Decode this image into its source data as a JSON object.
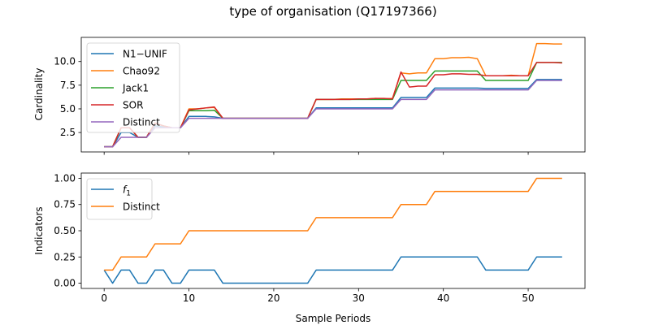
{
  "chart_data": [
    {
      "type": "line",
      "title": "type of organisation (Q17197366)",
      "xlabel": "",
      "ylabel": "Cardinality",
      "xlim": [
        -2.7,
        56.7
      ],
      "ylim": [
        0.45,
        12.55
      ],
      "xticks": [
        0,
        10,
        20,
        30,
        40,
        50
      ],
      "xtick_labels_visible": false,
      "yticks": [
        2.5,
        5.0,
        7.5,
        10.0
      ],
      "ytick_labels": [
        "2.5",
        "5.0",
        "7.5",
        "10.0"
      ],
      "legend_position": "upper-left",
      "grid": false,
      "x": [
        0,
        1,
        2,
        3,
        4,
        5,
        6,
        7,
        8,
        9,
        10,
        11,
        12,
        13,
        14,
        15,
        16,
        17,
        18,
        19,
        20,
        21,
        22,
        23,
        24,
        25,
        26,
        27,
        28,
        29,
        30,
        31,
        32,
        33,
        34,
        35,
        36,
        37,
        38,
        39,
        40,
        41,
        42,
        43,
        44,
        45,
        46,
        47,
        48,
        49,
        50,
        51,
        52,
        53,
        54
      ],
      "series": [
        {
          "name": "N1−UNIF",
          "color": "#1f77b4",
          "values": [
            1,
            1,
            2.5,
            2.5,
            2,
            2,
            3.2,
            3.1,
            3,
            3,
            4.2,
            4.2,
            4.2,
            4.15,
            4,
            4,
            4,
            4,
            4,
            4,
            4,
            4,
            4,
            4,
            4,
            5.1,
            5.1,
            5.1,
            5.1,
            5.1,
            5.1,
            5.1,
            5.1,
            5.1,
            5.1,
            6.2,
            6.2,
            6.2,
            6.2,
            7.2,
            7.2,
            7.2,
            7.2,
            7.2,
            7.2,
            7.15,
            7.15,
            7.15,
            7.15,
            7.15,
            7.15,
            8.1,
            8.1,
            8.1,
            8.1
          ]
        },
        {
          "name": "Chao92",
          "color": "#ff7f0e",
          "values": [
            1,
            1,
            3,
            3,
            2,
            2,
            3.5,
            3.2,
            3,
            3,
            5,
            5,
            5.1,
            5.15,
            4,
            4,
            4,
            4,
            4,
            4,
            4,
            4,
            4,
            4,
            4,
            6,
            6,
            6,
            6.05,
            6.05,
            6.05,
            6.05,
            6.1,
            6.05,
            6.1,
            8.8,
            8.7,
            8.8,
            8.8,
            10.3,
            10.3,
            10.4,
            10.4,
            10.45,
            10.3,
            8.5,
            8.5,
            8.5,
            8.55,
            8.5,
            8.5,
            11.9,
            11.9,
            11.85,
            11.85
          ]
        },
        {
          "name": "Jack1",
          "color": "#2ca02c",
          "values": [
            1,
            1,
            3,
            3,
            2,
            2,
            3.5,
            3.2,
            3,
            3,
            4.8,
            4.8,
            4.8,
            4.85,
            4,
            4,
            4,
            4,
            4,
            4,
            4,
            4,
            4,
            4,
            4,
            6,
            6,
            6,
            6,
            6,
            6,
            6,
            6,
            6,
            6,
            8,
            8,
            8,
            8,
            9,
            9,
            9,
            9,
            9,
            9,
            8,
            8,
            8,
            8,
            8,
            8,
            9.9,
            9.9,
            9.9,
            9.9
          ]
        },
        {
          "name": "SOR",
          "color": "#d62728",
          "values": [
            1,
            1,
            3,
            3,
            2,
            2,
            3.5,
            3.2,
            3,
            3,
            4.9,
            5,
            5.1,
            5.2,
            4,
            4,
            4,
            4,
            4,
            4,
            4,
            4,
            4,
            4,
            4,
            6,
            6,
            6,
            6,
            6,
            6.05,
            6.05,
            6.1,
            6.1,
            6.05,
            8.9,
            7.3,
            7.4,
            7.4,
            8.6,
            8.6,
            8.7,
            8.7,
            8.65,
            8.65,
            8.5,
            8.5,
            8.5,
            8.5,
            8.5,
            8.5,
            9.9,
            9.9,
            9.9,
            9.85
          ]
        },
        {
          "name": "Distinct",
          "color": "#9467bd",
          "values": [
            1,
            1,
            2,
            2,
            2,
            2,
            3,
            3,
            3,
            3,
            4,
            4,
            4,
            4,
            4,
            4,
            4,
            4,
            4,
            4,
            4,
            4,
            4,
            4,
            4,
            5,
            5,
            5,
            5,
            5,
            5,
            5,
            5,
            5,
            5,
            6,
            6,
            6,
            6,
            7,
            7,
            7,
            7,
            7,
            7,
            7,
            7,
            7,
            7,
            7,
            7,
            8,
            8,
            8,
            8
          ]
        }
      ]
    },
    {
      "type": "line",
      "title": "",
      "xlabel": "Sample Periods",
      "ylabel": "Indicators",
      "xlim": [
        -2.7,
        56.7
      ],
      "ylim": [
        -0.05,
        1.05
      ],
      "xticks": [
        0,
        10,
        20,
        30,
        40,
        50
      ],
      "xtick_labels": [
        "0",
        "10",
        "20",
        "30",
        "40",
        "50"
      ],
      "yticks": [
        0.0,
        0.25,
        0.5,
        0.75,
        1.0
      ],
      "ytick_labels": [
        "0.00",
        "0.25",
        "0.50",
        "0.75",
        "1.00"
      ],
      "legend_position": "upper-left",
      "grid": false,
      "x": [
        0,
        1,
        2,
        3,
        4,
        5,
        6,
        7,
        8,
        9,
        10,
        11,
        12,
        13,
        14,
        15,
        16,
        17,
        18,
        19,
        20,
        21,
        22,
        23,
        24,
        25,
        26,
        27,
        28,
        29,
        30,
        31,
        32,
        33,
        34,
        35,
        36,
        37,
        38,
        39,
        40,
        41,
        42,
        43,
        44,
        45,
        46,
        47,
        48,
        49,
        50,
        51,
        52,
        53,
        54
      ],
      "series": [
        {
          "name": "f1",
          "label_main": "f",
          "label_sub": "1",
          "color": "#1f77b4",
          "values": [
            0.125,
            0,
            0.125,
            0.125,
            0,
            0,
            0.125,
            0.125,
            0,
            0,
            0.125,
            0.125,
            0.125,
            0.125,
            0,
            0,
            0,
            0,
            0,
            0,
            0,
            0,
            0,
            0,
            0,
            0.125,
            0.125,
            0.125,
            0.125,
            0.125,
            0.125,
            0.125,
            0.125,
            0.125,
            0.125,
            0.25,
            0.25,
            0.25,
            0.25,
            0.25,
            0.25,
            0.25,
            0.25,
            0.25,
            0.25,
            0.125,
            0.125,
            0.125,
            0.125,
            0.125,
            0.125,
            0.25,
            0.25,
            0.25,
            0.25
          ]
        },
        {
          "name": "Distinct",
          "color": "#ff7f0e",
          "values": [
            0.125,
            0.125,
            0.25,
            0.25,
            0.25,
            0.25,
            0.375,
            0.375,
            0.375,
            0.375,
            0.5,
            0.5,
            0.5,
            0.5,
            0.5,
            0.5,
            0.5,
            0.5,
            0.5,
            0.5,
            0.5,
            0.5,
            0.5,
            0.5,
            0.5,
            0.625,
            0.625,
            0.625,
            0.625,
            0.625,
            0.625,
            0.625,
            0.625,
            0.625,
            0.625,
            0.75,
            0.75,
            0.75,
            0.75,
            0.875,
            0.875,
            0.875,
            0.875,
            0.875,
            0.875,
            0.875,
            0.875,
            0.875,
            0.875,
            0.875,
            0.875,
            1,
            1,
            1,
            1
          ]
        }
      ]
    }
  ]
}
